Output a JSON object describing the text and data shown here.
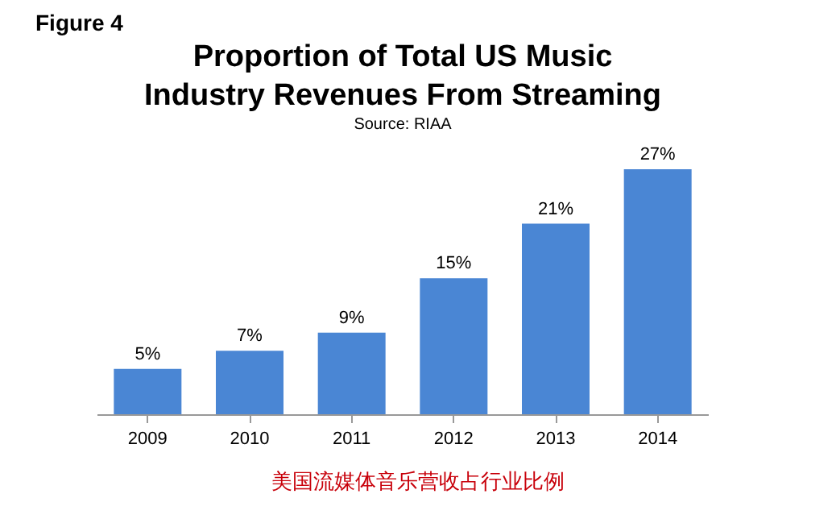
{
  "chart_data": {
    "type": "bar",
    "title": "Proportion of Total US Music Industry Revenues From Streaming",
    "subtitle": "Source: RIAA",
    "annotations": [
      "Figure 4",
      "美国流媒体音乐营收占行业比例"
    ],
    "categories": [
      "2009",
      "2010",
      "2011",
      "2012",
      "2013",
      "2014"
    ],
    "values": [
      5,
      7,
      9,
      15,
      21,
      27
    ],
    "value_labels": [
      "5%",
      "7%",
      "9%",
      "15%",
      "21%",
      "27%"
    ],
    "color": "#4a86d4",
    "grid": false
  }
}
